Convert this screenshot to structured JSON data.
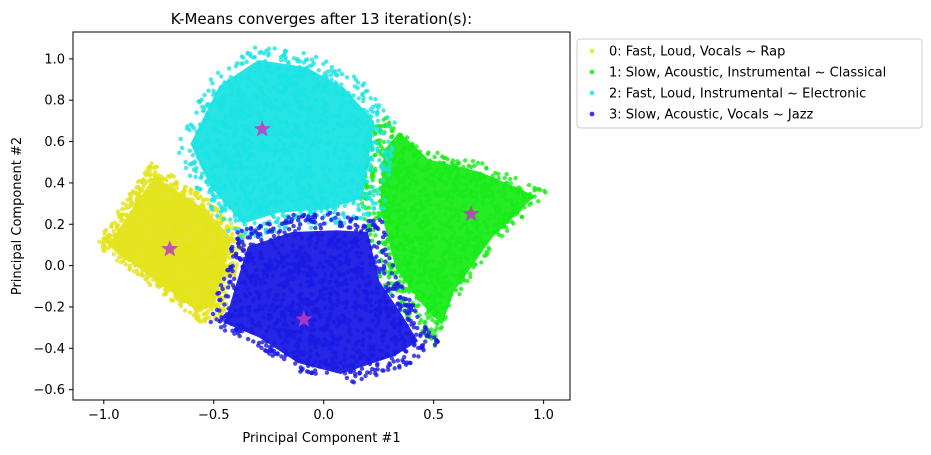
{
  "chart_data": {
    "type": "scatter",
    "title": "K-Means converges after 13 iteration(s):",
    "xlabel": "Principal Component #1",
    "ylabel": "Principal Component #2",
    "xlim": [
      -1.14,
      1.12
    ],
    "ylim": [
      -0.65,
      1.13
    ],
    "xticks": [
      -1.0,
      -0.5,
      0.0,
      0.5,
      1.0
    ],
    "xtick_labels": [
      "−1.0",
      "−0.5",
      "0.0",
      "0.5",
      "1.0"
    ],
    "yticks": [
      -0.6,
      -0.4,
      -0.2,
      0.0,
      0.2,
      0.4,
      0.6,
      0.8,
      1.0
    ],
    "ytick_labels": [
      "−0.6",
      "−0.4",
      "−0.2",
      "0.0",
      "0.2",
      "0.4",
      "0.6",
      "0.8",
      "1.0"
    ],
    "grid": false,
    "legend_position": "outside-right-top",
    "series": [
      {
        "name": "0: Fast, Loud, Vocals ~ Rap",
        "color": "#e3e31a",
        "region": [
          [
            -1.02,
            0.1
          ],
          [
            -0.78,
            0.48
          ],
          [
            -0.52,
            0.3
          ],
          [
            -0.38,
            0.14
          ],
          [
            -0.47,
            -0.24
          ],
          [
            -0.56,
            -0.26
          ]
        ],
        "centroid": [
          -0.7,
          0.08
        ]
      },
      {
        "name": "1: Slow, Acoustic, Instrumental ~ Classical",
        "color": "#19eb19",
        "region": [
          [
            0.3,
            0.7
          ],
          [
            0.45,
            0.55
          ],
          [
            0.72,
            0.48
          ],
          [
            1.0,
            0.35
          ],
          [
            0.78,
            0.12
          ],
          [
            0.58,
            -0.18
          ],
          [
            0.52,
            -0.36
          ],
          [
            0.42,
            -0.25
          ],
          [
            0.28,
            -0.05
          ],
          [
            0.2,
            0.28
          ],
          [
            0.22,
            0.6
          ]
        ],
        "centroid": [
          0.67,
          0.25
        ]
      },
      {
        "name": "2: Fast, Loud, Instrumental ~ Electronic",
        "color": "#1ae3e3",
        "region": [
          [
            -0.65,
            0.58
          ],
          [
            -0.5,
            0.9
          ],
          [
            -0.3,
            1.04
          ],
          [
            -0.05,
            1.0
          ],
          [
            0.15,
            0.88
          ],
          [
            0.3,
            0.7
          ],
          [
            0.24,
            0.28
          ],
          [
            0.05,
            0.22
          ],
          [
            -0.2,
            0.2
          ],
          [
            -0.38,
            0.14
          ],
          [
            -0.55,
            0.35
          ]
        ],
        "centroid": [
          -0.28,
          0.66
        ]
      },
      {
        "name": "3: Slow, Acoustic, Vocals ~ Jazz",
        "color": "#1a1ae3",
        "region": [
          [
            -0.38,
            0.14
          ],
          [
            -0.15,
            0.22
          ],
          [
            0.08,
            0.23
          ],
          [
            0.24,
            0.22
          ],
          [
            0.3,
            -0.05
          ],
          [
            0.42,
            -0.24
          ],
          [
            0.5,
            -0.38
          ],
          [
            0.38,
            -0.46
          ],
          [
            0.1,
            -0.56
          ],
          [
            -0.12,
            -0.5
          ],
          [
            -0.32,
            -0.36
          ],
          [
            -0.5,
            -0.28
          ],
          [
            -0.45,
            -0.1
          ]
        ],
        "centroid": [
          -0.09,
          -0.26
        ]
      }
    ],
    "centroid_marker": {
      "shape": "star",
      "color": "#c23ac2"
    }
  }
}
